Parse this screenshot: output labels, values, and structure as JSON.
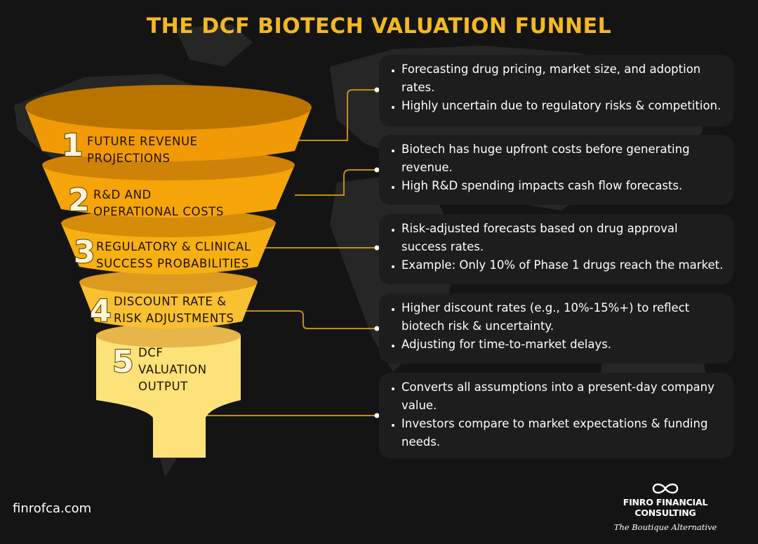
{
  "title": "THE DCF BIOTECH VALUATION FUNNEL",
  "colors": {
    "title": "#f5b820",
    "stage1": "#f29a06",
    "stage2": "#f5a509",
    "stage3": "#f7b012",
    "stage4": "#f9c130",
    "stage5": "#fde27a",
    "box_bg": "#1d1d1d"
  },
  "stages": [
    {
      "number": "1",
      "label": "FUTURE REVENUE\nPROJECTIONS",
      "bullets": [
        " Forecasting drug pricing, market size, and adoption rates.",
        "Highly uncertain due to regulatory risks & competition."
      ]
    },
    {
      "number": "2",
      "label": "R&D AND\nOPERATIONAL COSTS",
      "bullets": [
        "Biotech has huge upfront costs before generating revenue.",
        "High R&D spending impacts cash flow forecasts."
      ]
    },
    {
      "number": "3",
      "label": "REGULATORY & CLINICAL\nSUCCESS PROBABILITIES",
      "bullets": [
        "Risk-adjusted forecasts based on drug approval success rates.",
        "Example: Only 10% of Phase 1 drugs reach the market."
      ]
    },
    {
      "number": "4",
      "label": "DISCOUNT RATE &\nRISK ADJUSTMENTS",
      "bullets": [
        "Higher discount rates (e.g., 10%-15%+) to reflect biotech risk & uncertainty.",
        "Adjusting for time-to-market delays."
      ]
    },
    {
      "number": "5",
      "label": "DCF\nVALUATION\nOUTPUT",
      "bullets": [
        "Converts all assumptions into a present-day company value.",
        "Investors compare to market expectations & funding needs."
      ]
    }
  ],
  "footer": {
    "url": "finrofca.com",
    "logo_icon": "infinity-icon",
    "brand_name": "FINRO FINANCIAL CONSULTING",
    "tagline": "The Boutique Alternative"
  }
}
